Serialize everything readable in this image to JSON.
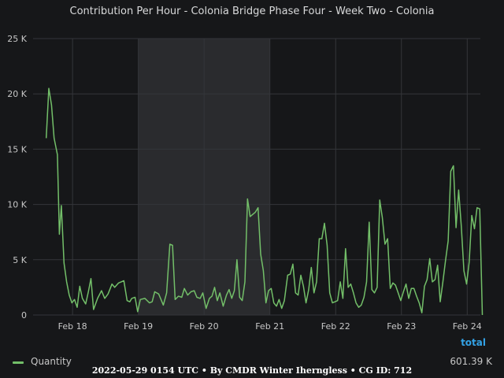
{
  "chart_data": {
    "type": "line",
    "title": "Contribution Per Hour - Colonia Bridge Phase Four - Week Two - Colonia",
    "y_ticks": [
      "0",
      "5 K",
      "10 K",
      "15 K",
      "20 K",
      "25 K"
    ],
    "ylim": [
      0,
      25000
    ],
    "xlim": [
      -0.6,
      6.2
    ],
    "x_ticks": [
      {
        "label": "Feb 18",
        "day": 0
      },
      {
        "label": "Feb 19",
        "day": 1
      },
      {
        "label": "Feb 20",
        "day": 2
      },
      {
        "label": "Feb 21",
        "day": 3
      },
      {
        "label": "Feb 22",
        "day": 4
      },
      {
        "label": "Feb 23",
        "day": 5
      },
      {
        "label": "Feb 24",
        "day": 6
      }
    ],
    "shaded_region": {
      "from_day": 1,
      "to_day": 3,
      "color": "#2a2b2e"
    },
    "grid": true,
    "series": [
      {
        "name": "Quantity",
        "color": "#73bf69",
        "points": [
          [
            -0.4,
            16000
          ],
          [
            -0.36,
            20500
          ],
          [
            -0.32,
            19000
          ],
          [
            -0.28,
            16000
          ],
          [
            -0.23,
            14500
          ],
          [
            -0.2,
            7300
          ],
          [
            -0.17,
            9900
          ],
          [
            -0.13,
            4700
          ],
          [
            -0.09,
            3000
          ],
          [
            -0.05,
            1800
          ],
          [
            -0.01,
            1100
          ],
          [
            0.03,
            1400
          ],
          [
            0.07,
            700
          ],
          [
            0.11,
            2600
          ],
          [
            0.15,
            1500
          ],
          [
            0.2,
            1000
          ],
          [
            0.24,
            2100
          ],
          [
            0.28,
            3300
          ],
          [
            0.32,
            500
          ],
          [
            0.38,
            1500
          ],
          [
            0.44,
            2200
          ],
          [
            0.49,
            1500
          ],
          [
            0.54,
            1900
          ],
          [
            0.6,
            2800
          ],
          [
            0.64,
            2500
          ],
          [
            0.7,
            2900
          ],
          [
            0.74,
            3000
          ],
          [
            0.78,
            3100
          ],
          [
            0.83,
            1300
          ],
          [
            0.87,
            1200
          ],
          [
            0.9,
            1500
          ],
          [
            0.95,
            1600
          ],
          [
            0.99,
            300
          ],
          [
            1.03,
            1400
          ],
          [
            1.1,
            1500
          ],
          [
            1.17,
            1100
          ],
          [
            1.21,
            1200
          ],
          [
            1.25,
            2100
          ],
          [
            1.31,
            1900
          ],
          [
            1.38,
            900
          ],
          [
            1.43,
            2000
          ],
          [
            1.48,
            6400
          ],
          [
            1.52,
            6300
          ],
          [
            1.56,
            1400
          ],
          [
            1.61,
            1700
          ],
          [
            1.66,
            1600
          ],
          [
            1.7,
            2400
          ],
          [
            1.75,
            1800
          ],
          [
            1.8,
            2100
          ],
          [
            1.85,
            2200
          ],
          [
            1.89,
            1600
          ],
          [
            1.94,
            1500
          ],
          [
            1.98,
            2000
          ],
          [
            2.03,
            600
          ],
          [
            2.08,
            1500
          ],
          [
            2.12,
            1700
          ],
          [
            2.16,
            2500
          ],
          [
            2.2,
            1300
          ],
          [
            2.24,
            2000
          ],
          [
            2.29,
            800
          ],
          [
            2.34,
            1800
          ],
          [
            2.38,
            2300
          ],
          [
            2.42,
            1500
          ],
          [
            2.46,
            2200
          ],
          [
            2.5,
            5000
          ],
          [
            2.54,
            1600
          ],
          [
            2.58,
            1300
          ],
          [
            2.62,
            3000
          ],
          [
            2.66,
            10500
          ],
          [
            2.7,
            8900
          ],
          [
            2.74,
            9100
          ],
          [
            2.78,
            9300
          ],
          [
            2.82,
            9700
          ],
          [
            2.86,
            5500
          ],
          [
            2.9,
            4000
          ],
          [
            2.94,
            1100
          ],
          [
            2.98,
            2200
          ],
          [
            3.02,
            2400
          ],
          [
            3.06,
            1100
          ],
          [
            3.1,
            800
          ],
          [
            3.14,
            1400
          ],
          [
            3.18,
            600
          ],
          [
            3.22,
            1300
          ],
          [
            3.27,
            3600
          ],
          [
            3.31,
            3700
          ],
          [
            3.35,
            4600
          ],
          [
            3.39,
            2000
          ],
          [
            3.43,
            1800
          ],
          [
            3.47,
            3600
          ],
          [
            3.51,
            2600
          ],
          [
            3.55,
            1100
          ],
          [
            3.59,
            2300
          ],
          [
            3.63,
            4300
          ],
          [
            3.67,
            2000
          ],
          [
            3.71,
            3000
          ],
          [
            3.75,
            6900
          ],
          [
            3.79,
            6900
          ],
          [
            3.83,
            8300
          ],
          [
            3.87,
            6300
          ],
          [
            3.91,
            2000
          ],
          [
            3.95,
            1100
          ],
          [
            3.99,
            1200
          ],
          [
            4.03,
            1300
          ],
          [
            4.07,
            3000
          ],
          [
            4.11,
            1500
          ],
          [
            4.15,
            6000
          ],
          [
            4.19,
            2500
          ],
          [
            4.23,
            2800
          ],
          [
            4.27,
            2000
          ],
          [
            4.31,
            1100
          ],
          [
            4.35,
            700
          ],
          [
            4.39,
            900
          ],
          [
            4.43,
            1600
          ],
          [
            4.47,
            3000
          ],
          [
            4.51,
            8400
          ],
          [
            4.55,
            2300
          ],
          [
            4.59,
            2000
          ],
          [
            4.63,
            2500
          ],
          [
            4.67,
            10400
          ],
          [
            4.71,
            8800
          ],
          [
            4.75,
            6400
          ],
          [
            4.79,
            6900
          ],
          [
            4.83,
            2400
          ],
          [
            4.87,
            2900
          ],
          [
            4.91,
            2700
          ],
          [
            4.95,
            2000
          ],
          [
            4.99,
            1300
          ],
          [
            5.03,
            2100
          ],
          [
            5.07,
            2800
          ],
          [
            5.11,
            1500
          ],
          [
            5.15,
            2400
          ],
          [
            5.19,
            2400
          ],
          [
            5.23,
            1700
          ],
          [
            5.27,
            1100
          ],
          [
            5.31,
            200
          ],
          [
            5.35,
            2600
          ],
          [
            5.39,
            3200
          ],
          [
            5.43,
            5100
          ],
          [
            5.47,
            3000
          ],
          [
            5.51,
            3200
          ],
          [
            5.55,
            4500
          ],
          [
            5.59,
            1200
          ],
          [
            5.63,
            3000
          ],
          [
            5.67,
            4900
          ],
          [
            5.71,
            6700
          ],
          [
            5.75,
            13000
          ],
          [
            5.79,
            13500
          ],
          [
            5.83,
            7900
          ],
          [
            5.87,
            11300
          ],
          [
            5.91,
            8000
          ],
          [
            5.95,
            4000
          ],
          [
            5.99,
            2800
          ],
          [
            6.03,
            4800
          ],
          [
            6.07,
            9000
          ],
          [
            6.11,
            7800
          ],
          [
            6.15,
            9700
          ],
          [
            6.19,
            9600
          ],
          [
            6.23,
            0
          ]
        ]
      }
    ]
  },
  "legend": {
    "total_header": "total",
    "items": [
      {
        "name": "Quantity",
        "total": "601.39 K",
        "color": "#73bf69"
      }
    ]
  },
  "footer": "2022-05-29 0154 UTC • By CMDR Winter Iherngless • CG ID: 712"
}
